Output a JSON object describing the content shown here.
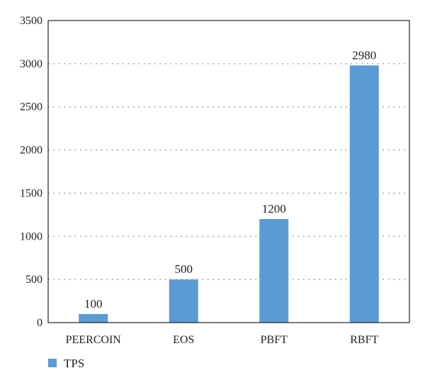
{
  "chart_data": {
    "type": "bar",
    "categories": [
      "PEERCOIN",
      "EOS",
      "PBFT",
      "RBFT"
    ],
    "series": [
      {
        "name": "TPS",
        "values": [
          100,
          500,
          1200,
          2980
        ],
        "color": "#5b9bd5"
      }
    ],
    "ylim": [
      0,
      3500
    ],
    "yticks": [
      0,
      500,
      1000,
      1500,
      2000,
      2500,
      3000,
      3500
    ],
    "grid": true,
    "legend": "bottom-left"
  }
}
